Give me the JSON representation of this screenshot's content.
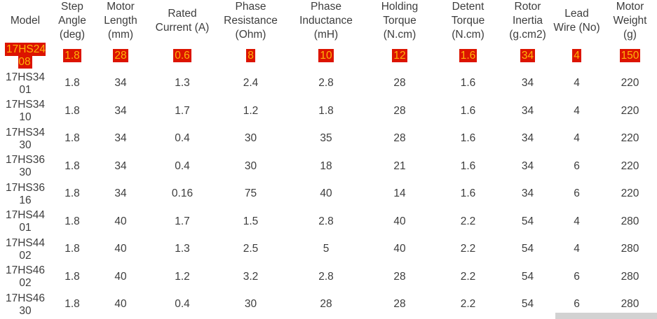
{
  "page": {
    "background": "#ffffff",
    "text_color": "#3d3d3d"
  },
  "highlight": {
    "background": "#dc1400",
    "text_color": "#ffb30a"
  },
  "table": {
    "columns": [
      {
        "id": "model",
        "label": "Model"
      },
      {
        "id": "step-angle",
        "label": "Step Angle (deg)"
      },
      {
        "id": "motor-length",
        "label": "Motor Length (mm)"
      },
      {
        "id": "rated-current",
        "label": "Rated Current (A)"
      },
      {
        "id": "phase-resistance",
        "label": "Phase Resistance (Ohm)"
      },
      {
        "id": "phase-inductance",
        "label": "Phase Inductance (mH)"
      },
      {
        "id": "holding-torque",
        "label": "Holding Torque (N.cm)"
      },
      {
        "id": "detent-torque",
        "label": "Detent Torque (N.cm)"
      },
      {
        "id": "rotor-inertia",
        "label": "Rotor Inertia (g.cm2)"
      },
      {
        "id": "lead-wire",
        "label": "Lead Wire (No)"
      },
      {
        "id": "motor-weight",
        "label": "Motor Weight (g)"
      }
    ],
    "rows": [
      {
        "highlighted": true,
        "cells": [
          "17HS2408",
          "1.8",
          "28",
          "0.6",
          "8",
          "10",
          "12",
          "1.6",
          "34",
          "4",
          "150"
        ]
      },
      {
        "highlighted": false,
        "cells": [
          "17HS3401",
          "1.8",
          "34",
          "1.3",
          "2.4",
          "2.8",
          "28",
          "1.6",
          "34",
          "4",
          "220"
        ]
      },
      {
        "highlighted": false,
        "cells": [
          "17HS3410",
          "1.8",
          "34",
          "1.7",
          "1.2",
          "1.8",
          "28",
          "1.6",
          "34",
          "4",
          "220"
        ]
      },
      {
        "highlighted": false,
        "cells": [
          "17HS3430",
          "1.8",
          "34",
          "0.4",
          "30",
          "35",
          "28",
          "1.6",
          "34",
          "4",
          "220"
        ]
      },
      {
        "highlighted": false,
        "cells": [
          "17HS3630",
          "1.8",
          "34",
          "0.4",
          "30",
          "18",
          "21",
          "1.6",
          "34",
          "6",
          "220"
        ]
      },
      {
        "highlighted": false,
        "cells": [
          "17HS3616",
          "1.8",
          "34",
          "0.16",
          "75",
          "40",
          "14",
          "1.6",
          "34",
          "6",
          "220"
        ]
      },
      {
        "highlighted": false,
        "cells": [
          "17HS4401",
          "1.8",
          "40",
          "1.7",
          "1.5",
          "2.8",
          "40",
          "2.2",
          "54",
          "4",
          "280"
        ]
      },
      {
        "highlighted": false,
        "cells": [
          "17HS4402",
          "1.8",
          "40",
          "1.3",
          "2.5",
          "5",
          "40",
          "2.2",
          "54",
          "4",
          "280"
        ]
      },
      {
        "highlighted": false,
        "cells": [
          "17HS4602",
          "1.8",
          "40",
          "1.2",
          "3.2",
          "2.8",
          "28",
          "2.2",
          "54",
          "6",
          "280"
        ]
      },
      {
        "highlighted": false,
        "cells": [
          "17HS4630",
          "1.8",
          "40",
          "0.4",
          "30",
          "28",
          "28",
          "2.2",
          "54",
          "6",
          "280"
        ]
      }
    ]
  },
  "scrollbar": {
    "orientation": "horizontal",
    "thumb_color": "#d2d2d2"
  }
}
